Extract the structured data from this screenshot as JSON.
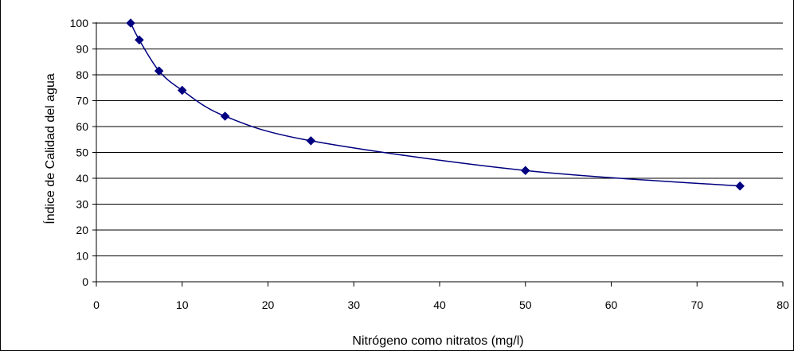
{
  "chart_data": {
    "type": "scatter",
    "title": "",
    "xlabel": "Nitrógeno como nitratos (mg/l)",
    "ylabel": "Índice de  Calidad  del  agua",
    "xlim": [
      0,
      80
    ],
    "ylim": [
      0,
      100
    ],
    "x_ticks": [
      0,
      10,
      20,
      30,
      40,
      50,
      60,
      70,
      80
    ],
    "y_ticks": [
      0,
      10,
      20,
      30,
      40,
      50,
      60,
      70,
      80,
      90,
      100
    ],
    "grid": "horizontal",
    "legend": "none",
    "marker": "diamond",
    "smooth_line": true,
    "series": [
      {
        "color": "#000080",
        "x": [
          4,
          5,
          7.3,
          10,
          15,
          25,
          50,
          75
        ],
        "y": [
          100,
          93.5,
          81.5,
          74,
          64,
          54.5,
          43,
          37
        ]
      }
    ]
  }
}
